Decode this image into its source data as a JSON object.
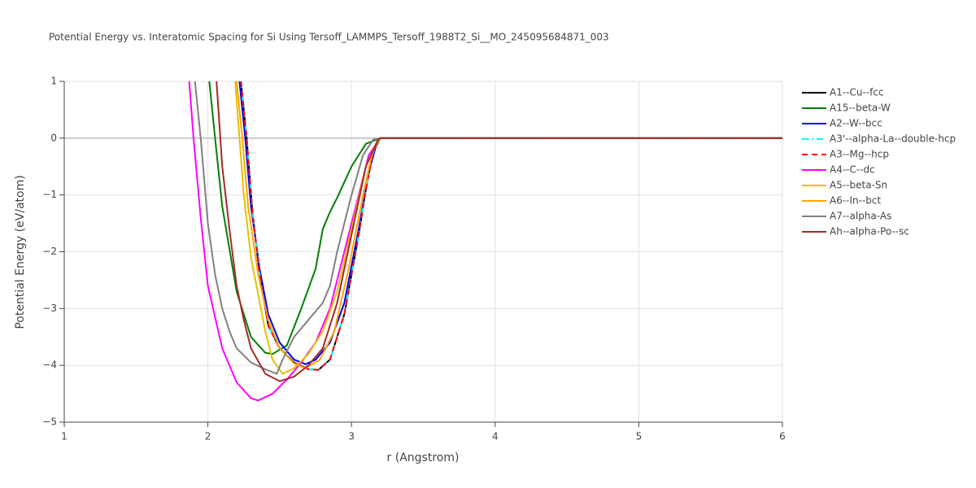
{
  "chart_data": {
    "type": "line",
    "title": "Potential Energy vs. Interatomic Spacing for Si Using Tersoff_LAMMPS_Tersoff_1988T2_Si__MO_245095684871_003",
    "x_label": "r (Angstrom)",
    "y_label": "Potential Energy (eV/atom)",
    "xlim": [
      1,
      6
    ],
    "xticks": [
      1,
      2,
      3,
      4,
      5,
      6
    ],
    "ylim": [
      -5,
      1
    ],
    "yticks": [
      {
        "value": -5,
        "label": "−5"
      },
      {
        "value": -4,
        "label": "−4"
      },
      {
        "value": -3,
        "label": "−3"
      },
      {
        "value": -2,
        "label": "−2"
      },
      {
        "value": -1,
        "label": "−1"
      },
      0,
      1
    ],
    "grid": true,
    "legend": "right",
    "series": [
      {
        "name": "A1--Cu--fcc",
        "color": "#000000",
        "dash": "solid",
        "x": [
          2.23,
          2.27,
          2.31,
          2.36,
          2.42,
          2.5,
          2.6,
          2.7,
          2.77,
          2.85,
          2.95,
          3.05,
          3.1,
          3.15,
          3.2,
          6
        ],
        "values": [
          1,
          0,
          -1.3,
          -2.4,
          -3.3,
          -3.7,
          -3.95,
          -4.07,
          -4.08,
          -3.9,
          -3.1,
          -1.7,
          -0.9,
          -0.25,
          0,
          0
        ]
      },
      {
        "name": "A15--beta-W",
        "color": "#008000",
        "dash": "solid",
        "x": [
          2.01,
          2.05,
          2.1,
          2.2,
          2.3,
          2.4,
          2.45,
          2.55,
          2.65,
          2.75,
          2.8,
          2.85,
          2.9,
          3.0,
          3.1,
          3.2,
          6
        ],
        "values": [
          1,
          0,
          -1.2,
          -2.7,
          -3.5,
          -3.78,
          -3.8,
          -3.65,
          -3.0,
          -2.3,
          -1.6,
          -1.3,
          -1.05,
          -0.5,
          -0.1,
          0,
          0
        ]
      },
      {
        "name": "A2--W--bcc",
        "color": "#0000ff",
        "dash": "solid",
        "x": [
          2.22,
          2.26,
          2.3,
          2.36,
          2.42,
          2.5,
          2.6,
          2.68,
          2.75,
          2.85,
          2.95,
          3.05,
          3.12,
          3.18,
          3.2,
          6
        ],
        "values": [
          1,
          0,
          -1.2,
          -2.3,
          -3.1,
          -3.6,
          -3.9,
          -3.98,
          -3.9,
          -3.6,
          -2.9,
          -1.6,
          -0.6,
          -0.05,
          0,
          0
        ]
      },
      {
        "name": "A3'--alpha-La--double-hcp",
        "color": "#00ffff",
        "dash": "dashdot",
        "x": [
          2.23,
          2.27,
          2.31,
          2.36,
          2.42,
          2.5,
          2.6,
          2.7,
          2.77,
          2.85,
          2.95,
          3.05,
          3.1,
          3.15,
          3.2,
          6
        ],
        "values": [
          1,
          0,
          -1.3,
          -2.4,
          -3.3,
          -3.7,
          -3.95,
          -4.07,
          -4.08,
          -3.9,
          -3.1,
          -1.7,
          -0.9,
          -0.25,
          0,
          0
        ]
      },
      {
        "name": "A3--Mg--hcp",
        "color": "#ff0000",
        "dash": "dash",
        "x": [
          2.23,
          2.27,
          2.31,
          2.36,
          2.42,
          2.5,
          2.6,
          2.7,
          2.77,
          2.85,
          2.95,
          3.05,
          3.1,
          3.15,
          3.2,
          6
        ],
        "values": [
          1,
          0,
          -1.3,
          -2.4,
          -3.3,
          -3.7,
          -3.95,
          -4.07,
          -4.08,
          -3.9,
          -3.1,
          -1.7,
          -0.9,
          -0.25,
          0,
          0
        ]
      },
      {
        "name": "A4--C--dc",
        "color": "#ff00ff",
        "dash": "solid",
        "x": [
          1.87,
          1.9,
          1.95,
          2.0,
          2.1,
          2.2,
          2.3,
          2.35,
          2.45,
          2.55,
          2.65,
          2.75,
          2.85,
          2.95,
          3.05,
          3.12,
          3.2,
          6
        ],
        "values": [
          1,
          0,
          -1.4,
          -2.6,
          -3.7,
          -4.3,
          -4.58,
          -4.62,
          -4.5,
          -4.25,
          -3.95,
          -3.6,
          -3.0,
          -2.0,
          -1.0,
          -0.3,
          0,
          0
        ]
      },
      {
        "name": "A5--beta-Sn",
        "color": "#e6c000",
        "dash": "solid",
        "x": [
          2.19,
          2.22,
          2.25,
          2.3,
          2.4,
          2.45,
          2.52,
          2.6,
          2.7,
          2.8,
          2.9,
          3.0,
          3.1,
          3.18,
          3.2,
          6
        ],
        "values": [
          1,
          0,
          -1.0,
          -2.1,
          -3.4,
          -3.9,
          -4.15,
          -4.05,
          -3.8,
          -3.4,
          -2.7,
          -1.6,
          -0.5,
          -0.05,
          0,
          0
        ]
      },
      {
        "name": "A6--In--bct",
        "color": "#ffa500",
        "dash": "solid",
        "x": [
          2.2,
          2.24,
          2.28,
          2.35,
          2.42,
          2.5,
          2.6,
          2.68,
          2.78,
          2.88,
          2.98,
          3.08,
          3.15,
          3.2,
          6
        ],
        "values": [
          1,
          0,
          -1.2,
          -2.4,
          -3.2,
          -3.7,
          -3.97,
          -4.05,
          -3.9,
          -3.4,
          -2.3,
          -1.0,
          -0.2,
          0,
          0
        ]
      },
      {
        "name": "A7--alpha-As",
        "color": "#808080",
        "dash": "solid",
        "x": [
          1.91,
          1.95,
          2.0,
          2.05,
          2.1,
          2.15,
          2.2,
          2.3,
          2.4,
          2.48,
          2.52,
          2.6,
          2.7,
          2.8,
          2.85,
          2.9,
          3.0,
          3.08,
          3.15,
          3.2,
          6
        ],
        "values": [
          1,
          0,
          -1.5,
          -2.4,
          -3.0,
          -3.4,
          -3.7,
          -3.95,
          -4.07,
          -4.15,
          -3.9,
          -3.5,
          -3.2,
          -2.9,
          -2.6,
          -2.0,
          -1.0,
          -0.3,
          -0.03,
          0,
          0
        ]
      },
      {
        "name": "Ah--alpha-Po--sc",
        "color": "#a52a2a",
        "dash": "solid",
        "x": [
          2.06,
          2.1,
          2.15,
          2.2,
          2.25,
          2.3,
          2.4,
          2.5,
          2.6,
          2.7,
          2.8,
          2.9,
          3.0,
          3.1,
          3.18,
          3.2,
          6
        ],
        "values": [
          1,
          -0.5,
          -1.6,
          -2.6,
          -3.2,
          -3.7,
          -4.15,
          -4.28,
          -4.2,
          -4.0,
          -3.7,
          -2.9,
          -1.7,
          -0.5,
          -0.05,
          0,
          0
        ]
      }
    ]
  }
}
